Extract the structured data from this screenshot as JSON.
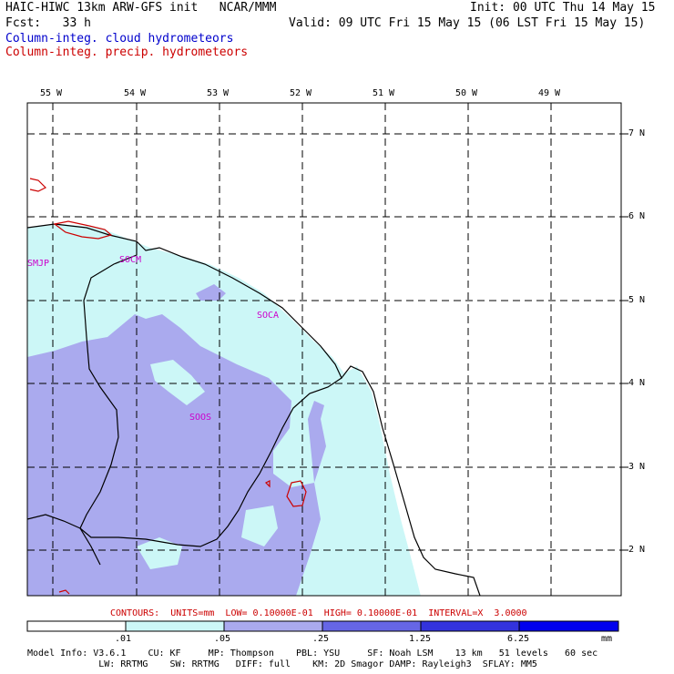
{
  "header": {
    "title_left": "HAIC-HIWC 13km ARW-GFS init   NCAR/MMM",
    "init": "Init: 00 UTC Thu 14 May 15",
    "fcst": "Fcst:   33 h",
    "valid": "Valid: 09 UTC Fri 15 May 15 (06 LST Fri 15 May 15)",
    "field1": "Column-integ. cloud hydrometeors",
    "field2": "Column-integ. precip. hydrometeors"
  },
  "map": {
    "lon_labels": [
      "55 W",
      "54 W",
      "53 W",
      "52 W",
      "51 W",
      "50 W",
      "49 W"
    ],
    "lat_labels": [
      "7 N",
      "6 N",
      "5 N",
      "4 N",
      "3 N",
      "2 N"
    ],
    "stations": [
      "SMJP",
      "SOCM",
      "SOCA",
      "SOOS"
    ],
    "colors": {
      "cloud_light": "#ccf7f7",
      "cloud_medium": "#9999ee",
      "coast": "#000000",
      "precip_contour": "#cc0000",
      "station": "#cc00cc"
    }
  },
  "contours_line": "CONTOURS:  UNITS=mm  LOW= 0.10000E-01  HIGH= 0.10000E-01  INTERVAL=X  3.0000",
  "colorbar": {
    "labels": [
      ".01",
      ".05",
      ".25",
      "1.25",
      "6.25"
    ],
    "unit": "mm",
    "colors": [
      "#ffffff",
      "#ccf7f7",
      "#aaaaee",
      "#6666e6",
      "#3333dd",
      "#0000ee"
    ]
  },
  "footer": {
    "line1": "Model Info: V3.6.1    CU: KF     MP: Thompson    PBL: YSU     SF: Noah LSM    13 km   51 levels   60 sec",
    "line2": "             LW: RRTMG    SW: RRTMG   DIFF: full    KM: 2D Smagor DAMP: Rayleigh3  SFLAY: MM5"
  }
}
